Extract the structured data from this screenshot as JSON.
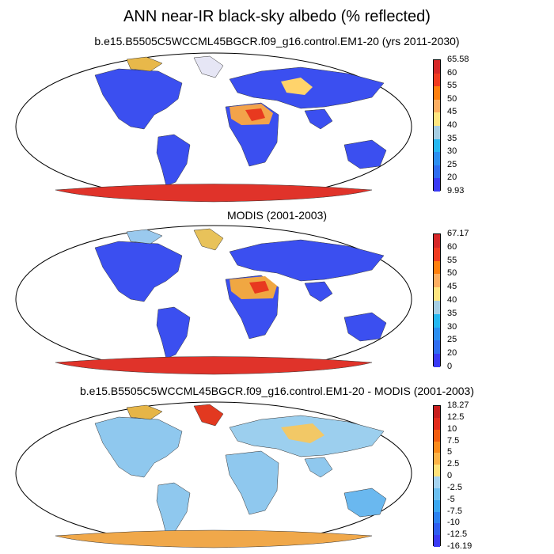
{
  "title": "ANN near-IR black-sky albedo (% reflected)",
  "panels": [
    {
      "subtitle": "b.e15.B5505C5WCCML45BGCR.f09_g16.control.EM1-20 (yrs 2011-2030)",
      "colorbar": {
        "labels": [
          "65.58",
          "60",
          "55",
          "50",
          "45",
          "40",
          "35",
          "30",
          "25",
          "20",
          "9.93"
        ],
        "colors": [
          "#d62728",
          "#f03b20",
          "#ff7f0e",
          "#fdae61",
          "#ffe680",
          "#a6cee3",
          "#26b8f0",
          "#2c8ff0",
          "#2f6df0",
          "#3a3af5"
        ]
      }
    },
    {
      "subtitle": "MODIS (2001-2003)",
      "colorbar": {
        "labels": [
          "67.17",
          "60",
          "55",
          "50",
          "45",
          "40",
          "35",
          "30",
          "25",
          "20",
          "0"
        ],
        "colors": [
          "#d62728",
          "#f03b20",
          "#ff7f0e",
          "#fdae61",
          "#ffe680",
          "#a6cee3",
          "#26b8f0",
          "#2c8ff0",
          "#2f6df0",
          "#3a3af5"
        ]
      }
    },
    {
      "subtitle": "b.e15.B5505C5WCCML45BGCR.f09_g16.control.EM1-20 - MODIS (2001-2003)",
      "colorbar": {
        "labels": [
          "18.27",
          "12.5",
          "10",
          "7.5",
          "5",
          "2.5",
          "0",
          "-2.5",
          "-5",
          "-7.5",
          "-10",
          "-12.5",
          "-16.19"
        ],
        "colors": [
          "#c81e1e",
          "#e32b1c",
          "#f25c0f",
          "#fb8a1a",
          "#fdb347",
          "#ffe27a",
          "#a6d4f0",
          "#6cc0f0",
          "#3aa7f0",
          "#2c82f0",
          "#2f5ef0",
          "#3a3af5"
        ]
      }
    }
  ]
}
